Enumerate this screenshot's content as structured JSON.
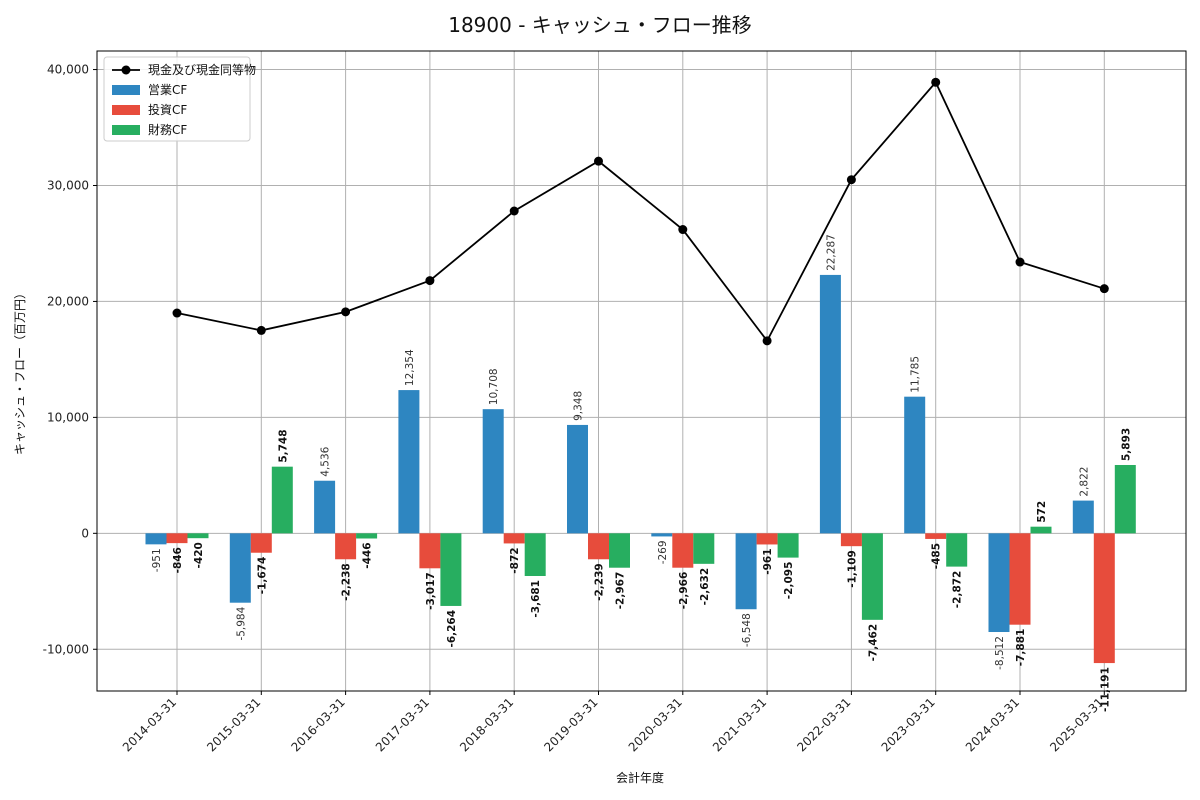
{
  "chart_data": {
    "type": "bar+line",
    "title": "18900 - キャッシュ・フロー推移",
    "xlabel": "会計年度",
    "ylabel": "キャッシュ・フロー（百万円）",
    "ylim": [
      -13600,
      41600
    ],
    "yticks": [
      -10000,
      0,
      10000,
      20000,
      30000,
      40000
    ],
    "ytick_labels": [
      "-10,000",
      "0",
      "10,000",
      "20,000",
      "30,000",
      "40,000"
    ],
    "grid": true,
    "legend_position": "top-left",
    "categories": [
      "2014-03-31",
      "2015-03-31",
      "2016-03-31",
      "2017-03-31",
      "2018-03-31",
      "2019-03-31",
      "2020-03-31",
      "2021-03-31",
      "2022-03-31",
      "2023-03-31",
      "2024-03-31",
      "2025-03-31"
    ],
    "line_series": {
      "name": "現金及び現金同等物",
      "color": "#000000",
      "values": [
        19000,
        17500,
        19100,
        21800,
        27800,
        32100,
        26200,
        16600,
        30500,
        38900,
        23400,
        21100
      ]
    },
    "series": [
      {
        "name": "営業CF",
        "color": "#2E86C1",
        "values": [
          -951,
          -5984,
          4536,
          12354,
          10708,
          9348,
          -269,
          -6548,
          22287,
          11785,
          -8512,
          2822
        ],
        "labels": [
          "-951",
          "-5,984",
          "4,536",
          "12,354",
          "10,708",
          "9,348",
          "-269",
          "-6,548",
          "22,287",
          "11,785",
          "-8,512",
          "2,822"
        ]
      },
      {
        "name": "投資CF",
        "color": "#E74C3C",
        "values": [
          -846,
          -1674,
          -2238,
          -3017,
          -872,
          -2239,
          -2966,
          -961,
          -1109,
          -485,
          -7881,
          -11191
        ],
        "labels": [
          "-846",
          "-1,674",
          "-2,238",
          "-3,017",
          "-872",
          "-2,239",
          "-2,966",
          "-961",
          "-1,109",
          "-485",
          "-7,881",
          "-11,191"
        ]
      },
      {
        "name": "財務CF",
        "color": "#27AE60",
        "values": [
          -420,
          5748,
          -446,
          -6264,
          -3681,
          -2967,
          -2632,
          -2095,
          -7462,
          -2872,
          572,
          5893
        ],
        "labels": [
          "-420",
          "5,748",
          "-446",
          "-6,264",
          "-3,681",
          "-2,967",
          "-2,632",
          "-2,095",
          "-7,462",
          "-2,872",
          "572",
          "5,893"
        ]
      }
    ]
  }
}
